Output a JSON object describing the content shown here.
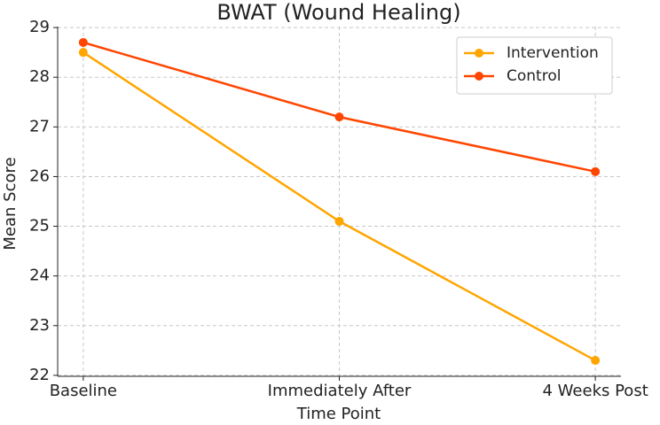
{
  "chart_data": {
    "type": "line",
    "title": "BWAT (Wound Healing)",
    "x_label": "Time Point",
    "y_label": "Mean Score",
    "categories": [
      "Baseline",
      "Immediately After",
      "4 Weeks Post"
    ],
    "series": [
      {
        "name": "Intervention",
        "color": "#ffa500",
        "values": [
          28.5,
          25.1,
          22.3
        ]
      },
      {
        "name": "Control",
        "color": "#ff4500",
        "values": [
          28.7,
          27.2,
          26.1
        ]
      }
    ],
    "ylim": [
      21.98,
      29.02
    ],
    "yticks": [
      22,
      23,
      24,
      25,
      26,
      27,
      28,
      29
    ],
    "grid": true,
    "legend": "upper right"
  }
}
